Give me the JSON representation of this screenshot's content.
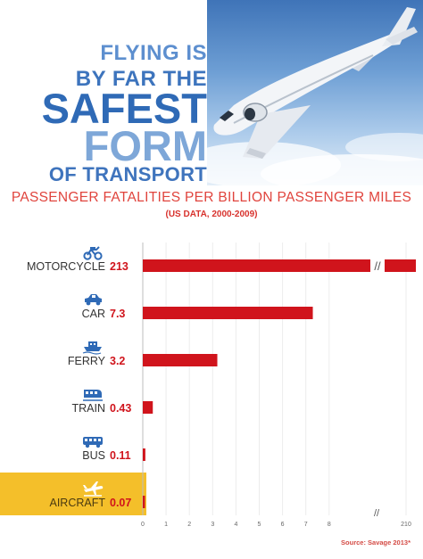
{
  "header": {
    "line1": "FLYING IS",
    "line2": "BY FAR THE",
    "line3": "SAFEST",
    "line4": "FORM",
    "line5": "OF TRANSPORT",
    "subtitle": "PASSENGER FATALITIES PER BILLION PASSENGER MILES",
    "subtitle2": "(US DATA, 2000-2009)"
  },
  "source": "Source: Savage 2013*",
  "colors": {
    "bar": "#d0141c",
    "highlight": "#f4bf2a",
    "accent_blue": "#2f6ab6",
    "text_red": "#e0443d"
  },
  "chart_data": {
    "type": "bar",
    "orientation": "horizontal",
    "categories": [
      "MOTORCYCLE",
      "CAR",
      "FERRY",
      "TRAIN",
      "BUS",
      "AIRCRAFT"
    ],
    "icons": [
      "motorcycle-icon",
      "car-icon",
      "ferry-icon",
      "train-icon",
      "bus-icon",
      "airplane-icon"
    ],
    "value_labels": [
      "213",
      "7.3",
      "3.2",
      "0.43",
      "0.11",
      "0.07"
    ],
    "values": [
      213,
      7.3,
      3.2,
      0.43,
      0.11,
      0.07
    ],
    "highlighted": "AIRCRAFT",
    "xticks": [
      "0",
      "1",
      "2",
      "3",
      "4",
      "5",
      "6",
      "7",
      "8",
      "210"
    ],
    "xlim": [
      0,
      210
    ],
    "axis_break": {
      "between": [
        8,
        210
      ],
      "symbol": "//"
    },
    "title": "PASSENGER FATALITIES PER BILLION PASSENGER MILES",
    "subtitle": "(US DATA, 2000-2009)",
    "xlabel": "",
    "ylabel": ""
  }
}
